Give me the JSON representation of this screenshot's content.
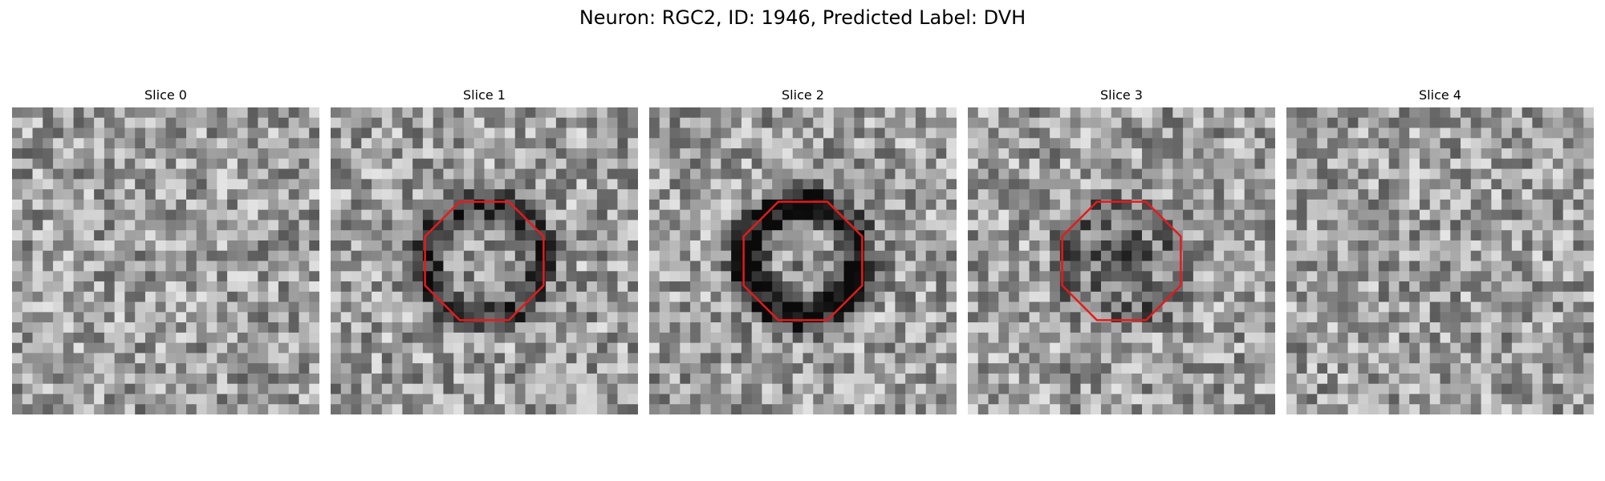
{
  "figure": {
    "title": "Neuron: RGC2, ID: 1946, Predicted Label: DVH"
  },
  "colors": {
    "outline": "#e8191b",
    "background": "#ffffff"
  },
  "panels": [
    {
      "title": "Slice 0",
      "outlined": false,
      "ring_darkness": 0.0,
      "center_darkness": 0.0,
      "seed": 11
    },
    {
      "title": "Slice 1",
      "outlined": true,
      "ring_darkness": 0.55,
      "center_darkness": 0.05,
      "seed": 23
    },
    {
      "title": "Slice 2",
      "outlined": true,
      "ring_darkness": 0.85,
      "center_darkness": 0.1,
      "seed": 37
    },
    {
      "title": "Slice 3",
      "outlined": true,
      "ring_darkness": 0.25,
      "center_darkness": 0.6,
      "seed": 41
    },
    {
      "title": "Slice 4",
      "outlined": false,
      "ring_darkness": 0.0,
      "center_darkness": 0.0,
      "seed": 53
    }
  ]
}
